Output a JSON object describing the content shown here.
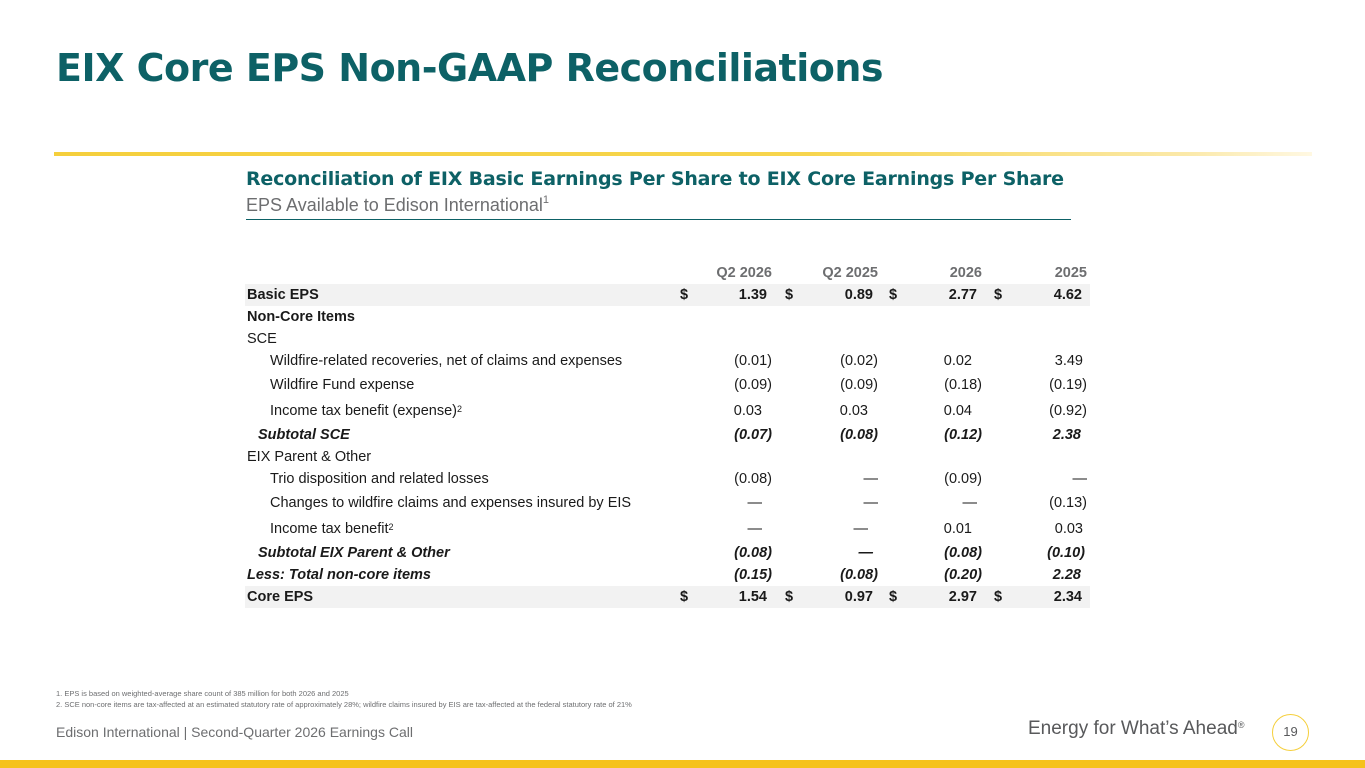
{
  "title": "EIX Core EPS Non-GAAP Reconciliations",
  "section": {
    "heading": "Reconciliation of EIX Basic Earnings Per Share to EIX Core Earnings Per Share",
    "caption": "EPS Available to Edison International",
    "caption_footnote": "1"
  },
  "table": {
    "columns": [
      "Q2 2026",
      "Q2 2025",
      "2026",
      "2025"
    ],
    "currency_symbol": "$",
    "basic_eps": {
      "label": "Basic EPS",
      "values": [
        "1.39",
        "0.89",
        "2.77",
        "4.62"
      ]
    },
    "non_core_label": "Non-Core Items",
    "sce_label": "SCE",
    "sce_rows": [
      {
        "label": "Wildfire-related recoveries, net of claims and expenses",
        "footnote": "",
        "values": [
          "(0.01)",
          "(0.02)",
          "0.02",
          "3.49"
        ]
      },
      {
        "label": "Wildfire Fund expense",
        "footnote": "",
        "values": [
          "(0.09)",
          "(0.09)",
          "(0.18)",
          "(0.19)"
        ]
      },
      {
        "label": "Income tax benefit (expense)",
        "footnote": "2",
        "values": [
          "0.03",
          "0.03",
          "0.04",
          "(0.92)"
        ]
      }
    ],
    "sce_subtotal": {
      "label": "Subtotal SCE",
      "values": [
        "(0.07)",
        "(0.08)",
        "(0.12)",
        "2.38"
      ]
    },
    "parent_label": "EIX Parent & Other",
    "parent_rows": [
      {
        "label": "Trio disposition and related losses",
        "footnote": "",
        "values": [
          "(0.08)",
          "—",
          "(0.09)",
          "—"
        ]
      },
      {
        "label": "Changes to wildfire claims and expenses insured by EIS",
        "footnote": "",
        "values": [
          "—",
          "—",
          "—",
          "(0.13)"
        ]
      },
      {
        "label": "Income tax benefit",
        "footnote": "2",
        "values": [
          "—",
          "—",
          "0.01",
          "0.03"
        ]
      }
    ],
    "parent_subtotal": {
      "label": "Subtotal EIX Parent & Other",
      "values": [
        "(0.08)",
        "—",
        "(0.08)",
        "(0.10)"
      ]
    },
    "total_non_core": {
      "label": "Less: Total non-core items",
      "values": [
        "(0.15)",
        "(0.08)",
        "(0.20)",
        "2.28"
      ]
    },
    "core_eps": {
      "label": "Core EPS",
      "values": [
        "1.54",
        "0.97",
        "2.97",
        "2.34"
      ]
    }
  },
  "footnotes": [
    "1.   EPS is based on weighted-average share count of 385 million for both 2026 and 2025",
    "2.   SCE non-core items are tax-affected at an estimated statutory rate of approximately 28%; wildfire claims insured by EIS are tax-affected at the federal statutory rate of 21%"
  ],
  "footer": {
    "company": "Edison International |  Second-Quarter 2026 Earnings Call",
    "tagline": "Energy for What’s Ahead",
    "tagline_mark": "®",
    "page_number": "19"
  },
  "colors": {
    "brand_teal": "#0d6166",
    "accent_yellow": "#f5cf3c",
    "row_shade": "#f2f2f2"
  }
}
